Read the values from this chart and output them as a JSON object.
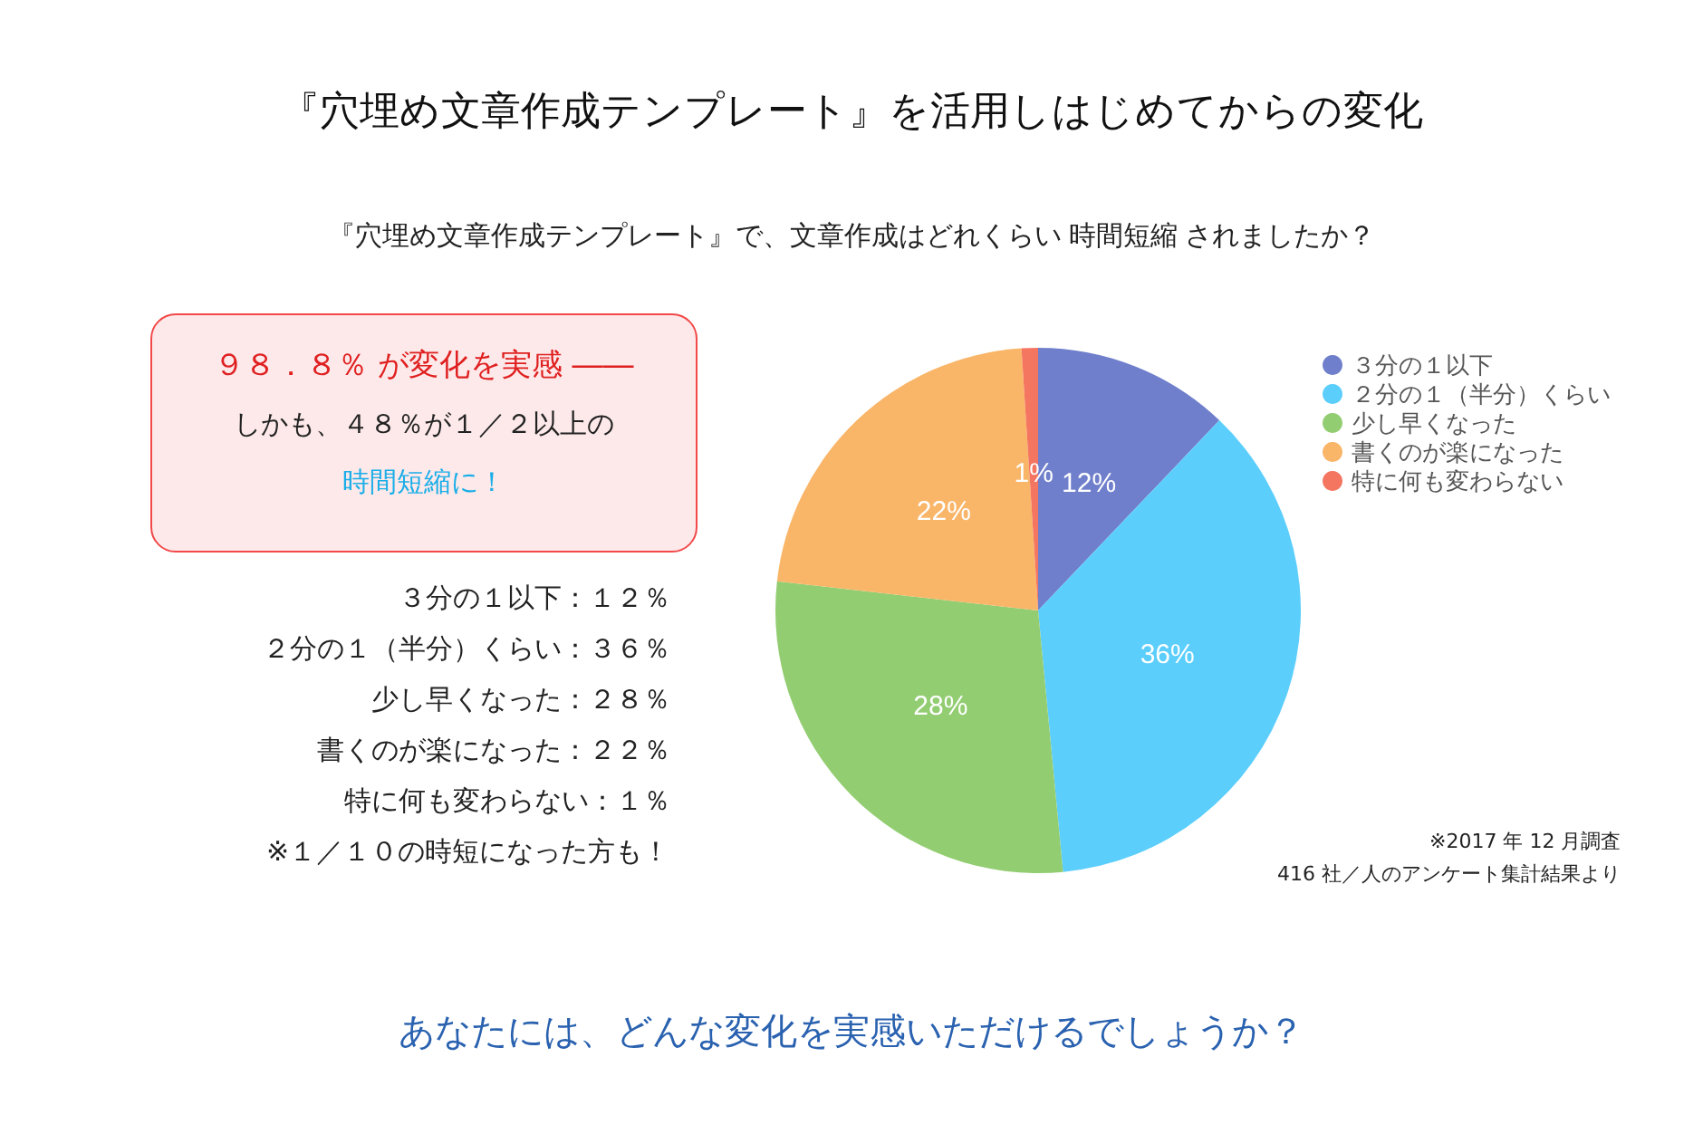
{
  "chart_data": {
    "type": "pie",
    "title": "『穴埋め文章作成テンプレート』を活用しはじめてからの変化",
    "subtitle": "『穴埋め文章作成テンプレート』で、文章作成はどれくらい 時間短縮 されましたか？",
    "categories": [
      "３分の１以下",
      "２分の１（半分）くらい",
      "少し早くなった",
      "書くのが楽になった",
      "特に何も変わらない"
    ],
    "values": [
      12,
      36,
      28,
      22,
      1
    ],
    "colors": [
      "#6f7fcb",
      "#5bcefc",
      "#93cd72",
      "#f9b568",
      "#f47560"
    ],
    "value_labels": [
      "12%",
      "36%",
      "28%",
      "22%",
      "1%"
    ],
    "legend": "top right",
    "annotations": [
      "９８．８％ が変化を実感 ――",
      "しかも、４８％が１／２以上の",
      "時間短縮に！",
      "３分の１以下：１２％",
      "２分の１（半分）くらい：３６％",
      "少し早くなった：２８％",
      "書くのが楽になった：２２％",
      "特に何も変わらない：１％",
      "※１／１０の時短になった方も！",
      "※2017 年 12 月調査",
      "416 社／人のアンケート集計結果より",
      "あなたには、どんな変化を実感いただけるでしょうか？"
    ]
  }
}
